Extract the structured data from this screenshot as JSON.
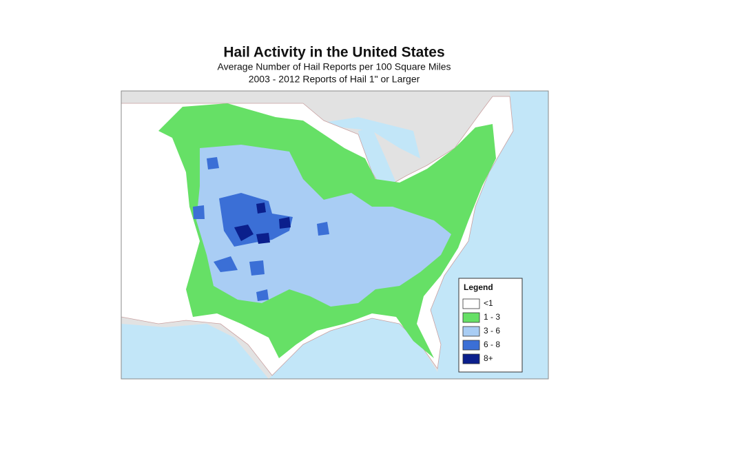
{
  "header": {
    "title": "Hail Activity in the United States",
    "subtitle": "Average Number of Hail Reports per 100 Square Miles",
    "period": "2003 - 2012 Reports of Hail 1\" or Larger"
  },
  "legend": {
    "title": "Legend",
    "items": [
      {
        "label": "<1",
        "color": "#ffffff"
      },
      {
        "label": "1 - 3",
        "color": "#66e066"
      },
      {
        "label": "3 - 6",
        "color": "#a9cdf4"
      },
      {
        "label": "6 - 8",
        "color": "#3b6fd6"
      },
      {
        "label": "8+",
        "color": "#0b1f8c"
      }
    ]
  }
}
